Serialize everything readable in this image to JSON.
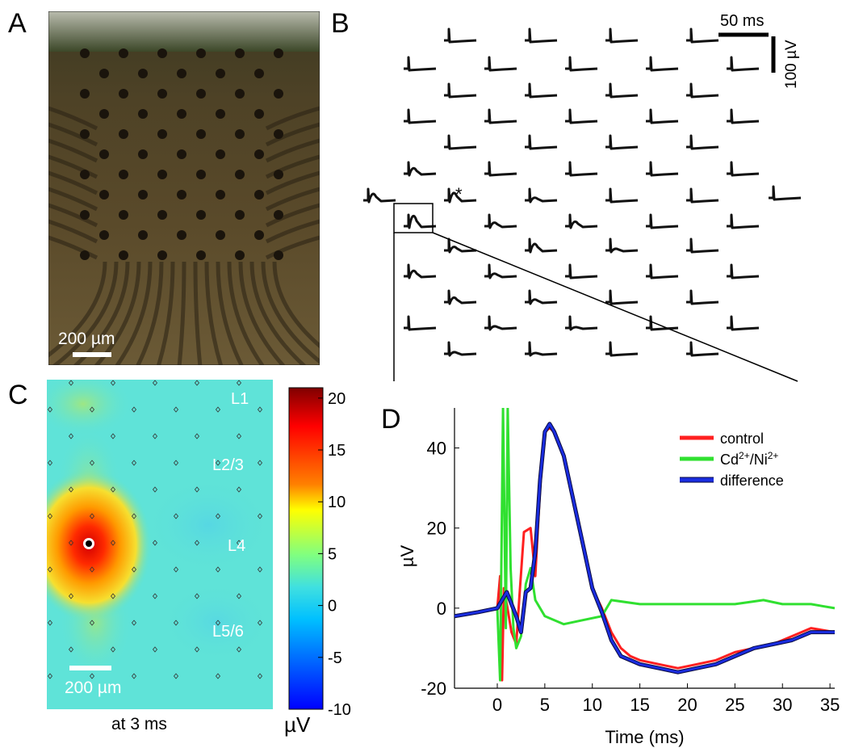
{
  "panels": {
    "a": {
      "letter": "A",
      "scale_bar_label": "200 µm"
    },
    "b": {
      "letter": "B",
      "time_scale_label": "50 ms",
      "amp_scale_label": "100 µV",
      "marker": "*"
    },
    "c": {
      "letter": "C",
      "layers": [
        "L1",
        "L2/3",
        "L4",
        "L5/6"
      ],
      "scale_bar_label": "200 µm",
      "time_label": "at 3 ms",
      "colorbar": {
        "ticks": [
          "20",
          "15",
          "10",
          "5",
          "0",
          "-5",
          "-10"
        ],
        "tick_values": [
          20,
          15,
          10,
          5,
          0,
          -5,
          -10
        ],
        "range": [
          -10,
          21
        ],
        "unit": "µV"
      }
    },
    "d": {
      "letter": "D",
      "xlabel": "Time (ms)",
      "ylabel": "µV",
      "xticks": [
        "0",
        "5",
        "10",
        "15",
        "20",
        "25",
        "30",
        "35"
      ],
      "yticks": [
        "40",
        "20",
        "0",
        "-20"
      ],
      "legend": [
        {
          "label": "control",
          "color": "#ff2020"
        },
        {
          "label": "Cd2+/Ni2+",
          "color": "#30e030"
        },
        {
          "label": "difference",
          "color": "#1a2de0"
        }
      ]
    }
  },
  "chart_data": {
    "type": "line",
    "title": "",
    "xlabel": "Time (ms)",
    "ylabel": "µV",
    "xlim": [
      -4.5,
      35.5
    ],
    "ylim": [
      -20,
      50
    ],
    "legend_position": "top-right",
    "series": [
      {
        "name": "control",
        "color": "#ff2020",
        "x": [
          -4.5,
          -2,
          0,
          0.3,
          0.5,
          0.7,
          1,
          1.5,
          2,
          2.3,
          2.8,
          3.5,
          4,
          4.5,
          5,
          5.5,
          6,
          7,
          8,
          9,
          10,
          11,
          12,
          13,
          14,
          15,
          17,
          19,
          21,
          23,
          25,
          27,
          29,
          31,
          33,
          35.5
        ],
        "y": [
          -2,
          -1,
          0,
          8,
          -18,
          5,
          1,
          -6,
          -9,
          2,
          19,
          20,
          8,
          30,
          44,
          45,
          44,
          38,
          27,
          16,
          5,
          0,
          -6,
          -10,
          -12,
          -13,
          -14,
          -15,
          -14,
          -13,
          -11,
          -10,
          -9,
          -7,
          -5,
          -6
        ]
      },
      {
        "name": "Cd2+/Ni2+",
        "color": "#30e030",
        "x": [
          -4.5,
          -2,
          0,
          0.3,
          0.6,
          0.9,
          1.1,
          1.4,
          1.7,
          2,
          2.5,
          3,
          3.5,
          4,
          5,
          7,
          9,
          11,
          12,
          15,
          20,
          25,
          28,
          30,
          33,
          35.5
        ],
        "y": [
          -2,
          -1,
          0,
          -18,
          50,
          -5,
          50,
          10,
          -5,
          -10,
          -7,
          6,
          10,
          2,
          -2,
          -4,
          -3,
          -2,
          2,
          1,
          1,
          1,
          2,
          1,
          1,
          0
        ]
      },
      {
        "name": "difference",
        "color": "#1a2de0",
        "x": [
          -4.5,
          -2,
          0,
          0.5,
          1,
          2,
          2.5,
          3,
          3.5,
          4,
          4.5,
          5,
          5.5,
          6,
          7,
          8,
          9,
          10,
          11,
          12,
          13,
          14,
          15,
          17,
          19,
          21,
          23,
          25,
          27,
          29,
          31,
          33,
          35.5
        ],
        "y": [
          -2,
          -1,
          0,
          2,
          4,
          -2,
          -6,
          4,
          5,
          14,
          32,
          44,
          46,
          44,
          38,
          27,
          16,
          5,
          -1,
          -8,
          -12,
          -13,
          -14,
          -15,
          -16,
          -15,
          -14,
          -12,
          -10,
          -9,
          -8,
          -6,
          -6
        ]
      }
    ]
  }
}
